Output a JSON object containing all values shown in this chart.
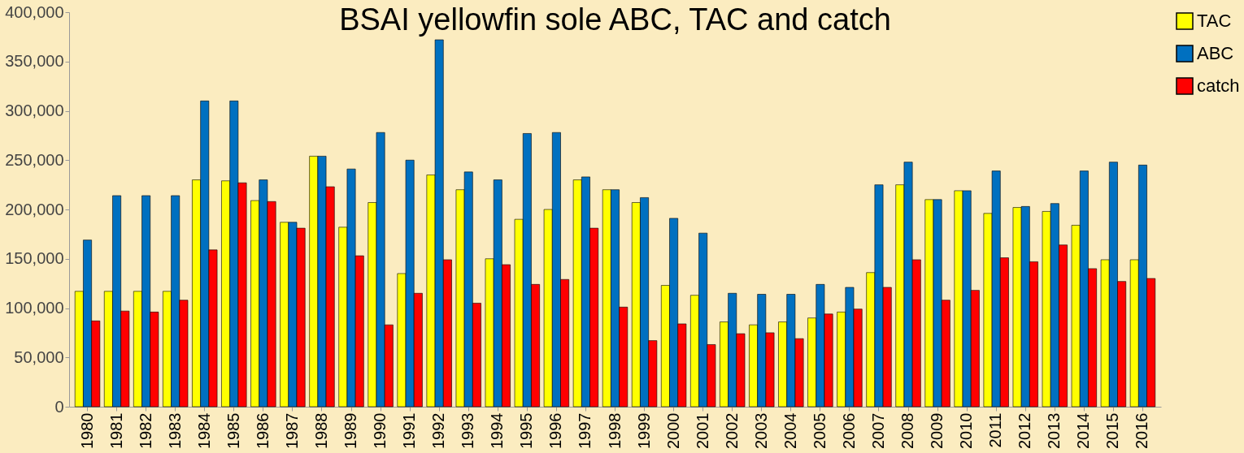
{
  "chart_data": {
    "type": "bar",
    "title": "BSAI yellowfin sole ABC, TAC and catch",
    "categories": [
      "1980",
      "1981",
      "1982",
      "1983",
      "1984",
      "1985",
      "1986",
      "1987",
      "1988",
      "1989",
      "1990",
      "1991",
      "1992",
      "1993",
      "1994",
      "1995",
      "1996",
      "1997",
      "1998",
      "1999",
      "2000",
      "2001",
      "2002",
      "2003",
      "2004",
      "2005",
      "2006",
      "2007",
      "2008",
      "2009",
      "2010",
      "2011",
      "2012",
      "2013",
      "2014",
      "2015",
      "2016"
    ],
    "series": [
      {
        "name": "TAC",
        "color": "#ffff00",
        "values": [
          117000,
          117000,
          117000,
          117000,
          230000,
          229000,
          209000,
          187000,
          254000,
          182000,
          207000,
          135000,
          235000,
          220000,
          150000,
          190000,
          200000,
          230000,
          220000,
          207000,
          123000,
          113000,
          86000,
          83000,
          86000,
          90000,
          96000,
          136000,
          225000,
          210000,
          219000,
          196000,
          202000,
          198000,
          184000,
          149000,
          149000
        ]
      },
      {
        "name": "ABC",
        "color": "#0070c0",
        "values": [
          169000,
          214000,
          214000,
          214000,
          310000,
          310000,
          230000,
          187000,
          254000,
          241000,
          278000,
          250000,
          372000,
          238000,
          230000,
          277000,
          278000,
          233000,
          220000,
          212000,
          191000,
          176000,
          115000,
          114000,
          114000,
          124000,
          121000,
          225000,
          248000,
          210000,
          219000,
          239000,
          203000,
          206000,
          239000,
          248000,
          245000
        ]
      },
      {
        "name": "catch",
        "color": "#ff0000",
        "values": [
          87000,
          97000,
          96000,
          108000,
          159000,
          227000,
          208000,
          181000,
          223000,
          153000,
          83000,
          115000,
          149000,
          105000,
          144000,
          124000,
          129000,
          181000,
          101000,
          67000,
          84000,
          63000,
          74000,
          75000,
          69000,
          94000,
          99000,
          121000,
          149000,
          108000,
          118000,
          151000,
          147000,
          164000,
          140000,
          127000,
          130000
        ]
      }
    ],
    "ylim": [
      0,
      400000
    ],
    "yticks": [
      0,
      {
        "value": 50000,
        "label": "50,000"
      },
      {
        "value": 100000,
        "label": "100,000"
      },
      {
        "value": 150000,
        "label": "150,000"
      },
      {
        "value": 200000,
        "label": "200,000"
      },
      {
        "value": 250000,
        "label": "250,000"
      },
      {
        "value": 300000,
        "label": "300,000"
      },
      {
        "value": 350000,
        "label": "350,000"
      },
      {
        "value": 400000,
        "label": "400,000"
      }
    ],
    "grid": false,
    "legend": "right"
  }
}
